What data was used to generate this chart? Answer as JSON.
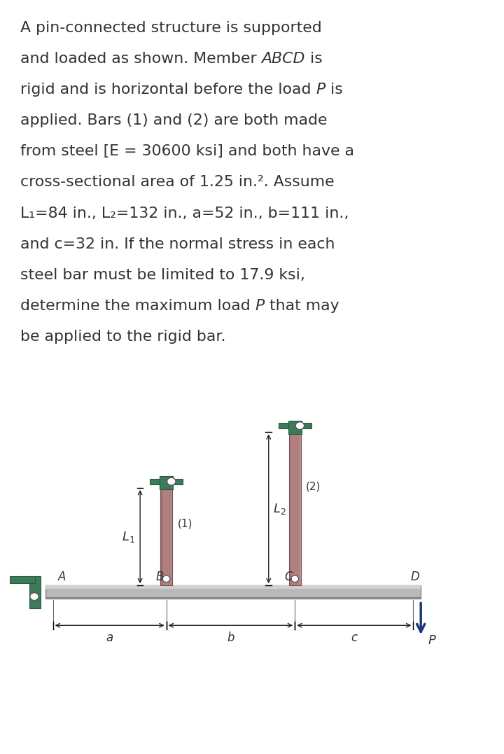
{
  "bg_color": "#ffffff",
  "bar_color": "#b08080",
  "bar_color_dark": "#7a5050",
  "bar_color_light": "#c09090",
  "support_color": "#3d7a5a",
  "support_color_dark": "#2a5a40",
  "beam_color": "#b8b8b8",
  "beam_color_dark": "#888888",
  "beam_color_light": "#d0d0d0",
  "pin_color": "#ffffff",
  "arrow_color": "#1a3a7a",
  "text_color": "#333333",
  "dim_color": "#222222",
  "text_lines": [
    [
      [
        "A pin-connected structure is supported",
        false
      ]
    ],
    [
      [
        "and loaded as shown. Member ",
        false
      ],
      [
        "ABCD",
        true
      ],
      [
        " is",
        false
      ]
    ],
    [
      [
        "rigid and is horizontal before the load ",
        false
      ],
      [
        "P",
        true
      ],
      [
        " is",
        false
      ]
    ],
    [
      [
        "applied. Bars (1) and (2) are both made",
        false
      ]
    ],
    [
      [
        "from steel [E = 30600 ksi] and both have a",
        false
      ]
    ],
    [
      [
        "cross-sectional area of 1.25 in.². Assume",
        false
      ]
    ],
    [
      [
        "L₁=84 in., L₂=132 in., a=52 in., b=111 in.,",
        false
      ]
    ],
    [
      [
        "and c=32 in. If the normal stress in each",
        false
      ]
    ],
    [
      [
        "steel bar must be limited to 17.9 ksi,",
        false
      ]
    ],
    [
      [
        "determine the maximum load ",
        false
      ],
      [
        "P",
        true
      ],
      [
        " that may",
        false
      ]
    ],
    [
      [
        "be applied to the rigid bar.",
        false
      ]
    ]
  ]
}
